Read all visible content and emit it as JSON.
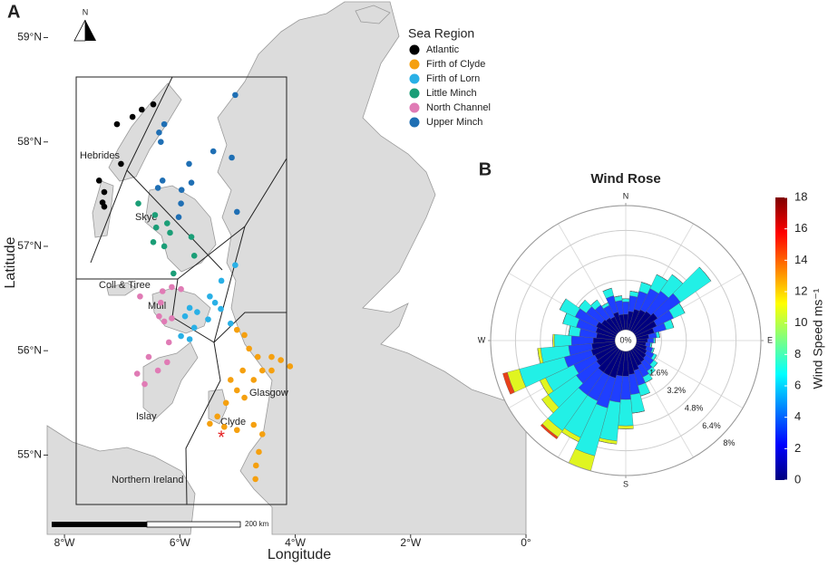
{
  "chart_data": [
    {
      "type": "map",
      "panel": "A",
      "x_label": "Longitude",
      "y_label": "Latitude",
      "xlim": [
        -8.3,
        0
      ],
      "ylim": [
        54.24,
        59.36
      ],
      "xticks": [
        {
          "value": -8,
          "label": "8°W"
        },
        {
          "value": -6,
          "label": "6°W"
        },
        {
          "value": -4,
          "label": "4°W"
        },
        {
          "value": -2,
          "label": "2°W"
        },
        {
          "value": 0,
          "label": "0°"
        }
      ],
      "yticks": [
        {
          "value": 55,
          "label": "55°N"
        },
        {
          "value": 56,
          "label": "56°N"
        },
        {
          "value": 57,
          "label": "57°N"
        },
        {
          "value": 58,
          "label": "58°N"
        },
        {
          "value": 59,
          "label": "59°N"
        }
      ],
      "legend_title": "Sea Region",
      "series": [
        {
          "name": "Atlantic",
          "color": "#000000",
          "x": [
            -7.09,
            -6.82,
            -6.66,
            -6.46,
            -7.02,
            -7.4,
            -7.31,
            -7.34,
            -7.31
          ],
          "values": [
            58.17,
            58.24,
            58.31,
            58.36,
            57.79,
            57.63,
            57.52,
            57.42,
            57.38
          ]
        },
        {
          "name": "Firth of Clyde",
          "color": "#f5a00f",
          "x": [
            -5.01,
            -4.88,
            -4.8,
            -4.65,
            -4.41,
            -4.25,
            -4.09,
            -4.41,
            -4.57,
            -4.72,
            -4.91,
            -5.12,
            -5.01,
            -5.2,
            -5.35,
            -5.23,
            -5.01,
            -4.72,
            -4.57,
            -4.63,
            -4.68,
            -4.69,
            -4.88,
            -5.48
          ],
          "values": [
            56.2,
            56.15,
            56.02,
            55.94,
            55.94,
            55.91,
            55.85,
            55.81,
            55.81,
            55.72,
            55.81,
            55.72,
            55.62,
            55.5,
            55.37,
            55.27,
            55.24,
            55.29,
            55.2,
            55.03,
            54.9,
            54.77,
            55.55,
            55.3
          ]
        },
        {
          "name": "Firth of Lorn",
          "color": "#29b0e6",
          "x": [
            -5.04,
            -5.28,
            -5.48,
            -5.39,
            -5.29,
            -5.83,
            -5.7,
            -5.91,
            -5.51,
            -5.75,
            -5.83,
            -5.98,
            -5.12
          ],
          "values": [
            56.82,
            56.67,
            56.52,
            56.46,
            56.4,
            56.41,
            56.37,
            56.33,
            56.3,
            56.22,
            56.11,
            56.14,
            56.26
          ]
        },
        {
          "name": "Little Minch",
          "color": "#1b9e77",
          "x": [
            -6.72,
            -6.43,
            -6.22,
            -6.41,
            -6.17,
            -6.46,
            -6.27,
            -5.8,
            -5.75,
            -6.11
          ],
          "values": [
            57.41,
            57.3,
            57.22,
            57.18,
            57.13,
            57.04,
            57.0,
            57.09,
            56.91,
            56.74
          ]
        },
        {
          "name": "North Channel",
          "color": "#e07bb5",
          "x": [
            -6.69,
            -6.3,
            -6.14,
            -5.98,
            -6.33,
            -6.36,
            -6.27,
            -6.14,
            -6.19,
            -6.54,
            -6.74,
            -6.61,
            -6.38,
            -6.22
          ],
          "values": [
            56.52,
            56.57,
            56.61,
            56.59,
            56.46,
            56.33,
            56.28,
            56.31,
            56.08,
            55.94,
            55.78,
            55.68,
            55.81,
            55.89
          ]
        },
        {
          "name": "Upper Minch",
          "color": "#1f6fb4",
          "x": [
            -5.04,
            -6.27,
            -6.36,
            -6.33,
            -5.42,
            -5.1,
            -5.84,
            -6.3,
            -6.38,
            -5.97,
            -5.8,
            -5.98,
            -6.02,
            -5.01
          ],
          "values": [
            58.45,
            58.17,
            58.09,
            58.0,
            57.91,
            57.85,
            57.79,
            57.63,
            57.56,
            57.54,
            57.61,
            57.41,
            57.28,
            57.33
          ]
        }
      ],
      "places": [
        "Hebrides",
        "Skye",
        "Coll & Tiree",
        "Mull",
        "Islay",
        "Glasgow",
        "Clyde",
        "Northern Ireland"
      ],
      "scale_label": "200 km",
      "north_label": "N"
    },
    {
      "type": "windrose",
      "panel": "B",
      "title": "Wind Rose",
      "x": [
        0,
        10,
        20,
        30,
        40,
        50,
        60,
        70,
        80,
        90,
        100,
        110,
        120,
        130,
        140,
        150,
        160,
        170,
        180,
        190,
        200,
        210,
        220,
        230,
        240,
        250,
        260,
        270,
        280,
        290,
        300,
        310,
        320,
        330,
        340,
        350
      ],
      "directions": [
        {
          "value": 0,
          "label": "N"
        },
        {
          "value": 90,
          "label": "E"
        },
        {
          "value": 180,
          "label": "S"
        },
        {
          "value": 270,
          "label": "W"
        }
      ],
      "rlim": [
        0,
        8
      ],
      "rticks": [
        {
          "value": 0,
          "label": "0%"
        },
        {
          "value": 1.6,
          "label": "1.6%"
        },
        {
          "value": 3.2,
          "label": "3.2%"
        },
        {
          "value": 4.8,
          "label": "4.8%"
        },
        {
          "value": 6.4,
          "label": "6.4%"
        },
        {
          "value": 8,
          "label": "8%"
        }
      ],
      "series": [
        {
          "color": "#00007f",
          "values": [
            1.0,
            1.2,
            1.4,
            1.5,
            1.6,
            1.8,
            1.5,
            1.2,
            0.8,
            0.7,
            0.6,
            0.7,
            0.8,
            0.9,
            1.0,
            1.1,
            1.3,
            1.5,
            1.6,
            1.6,
            1.8,
            1.8,
            1.8,
            1.6,
            1.5,
            1.6,
            1.5,
            1.4,
            1.2,
            1.3,
            1.4,
            1.2,
            1.1,
            1.0,
            1.2,
            1.0
          ]
        },
        {
          "color": "#1f3fff",
          "values": [
            0.8,
            1.0,
            1.2,
            1.5,
            1.6,
            1.8,
            1.2,
            0.8,
            0.5,
            0.4,
            0.3,
            0.4,
            0.5,
            0.6,
            0.7,
            0.8,
            1.0,
            1.3,
            1.5,
            1.7,
            2.0,
            1.8,
            1.8,
            1.6,
            1.5,
            1.8,
            1.5,
            1.4,
            1.1,
            1.3,
            1.5,
            1.2,
            1.0,
            0.8,
            1.1,
            0.9
          ]
        },
        {
          "color": "#22f0e6",
          "values": [
            0.2,
            0.3,
            0.6,
            1.0,
            1.3,
            2.4,
            0.8,
            0.5,
            0.2,
            0.1,
            0.1,
            0.1,
            0.2,
            0.3,
            0.3,
            0.4,
            0.7,
            1.2,
            1.7,
            2.5,
            3.2,
            2.6,
            2.8,
            2.2,
            2.0,
            3.0,
            1.8,
            1.1,
            0.7,
            0.9,
            1.1,
            0.6,
            0.4,
            0.2,
            0.5,
            0.3
          ]
        },
        {
          "color": "#e0f520",
          "values": [
            0,
            0,
            0,
            0,
            0,
            0,
            0,
            0,
            0,
            0,
            0,
            0,
            0,
            0,
            0,
            0,
            0,
            0,
            0.2,
            0.2,
            1.0,
            0.3,
            0.5,
            0.5,
            0.4,
            0.8,
            0.2,
            0.1,
            0,
            0,
            0,
            0,
            0,
            0,
            0,
            0
          ]
        },
        {
          "color": "#e8401a",
          "values": [
            0,
            0,
            0,
            0,
            0,
            0,
            0,
            0,
            0,
            0,
            0,
            0,
            0,
            0,
            0,
            0,
            0,
            0,
            0,
            0,
            0,
            0,
            0.15,
            0,
            0,
            0.3,
            0,
            0,
            0,
            0,
            0,
            0,
            0,
            0,
            0,
            0
          ]
        }
      ],
      "colorbar": {
        "label": "Wind Speed ms⁻¹",
        "lim": [
          0,
          18
        ],
        "ticks": [
          0,
          2,
          4,
          6,
          8,
          10,
          12,
          14,
          16,
          18
        ],
        "colors": [
          "#00007f",
          "#0000ff",
          "#007fff",
          "#00ffff",
          "#7fff7f",
          "#ffff00",
          "#ff7f00",
          "#ff0000",
          "#7f0000"
        ]
      }
    }
  ]
}
